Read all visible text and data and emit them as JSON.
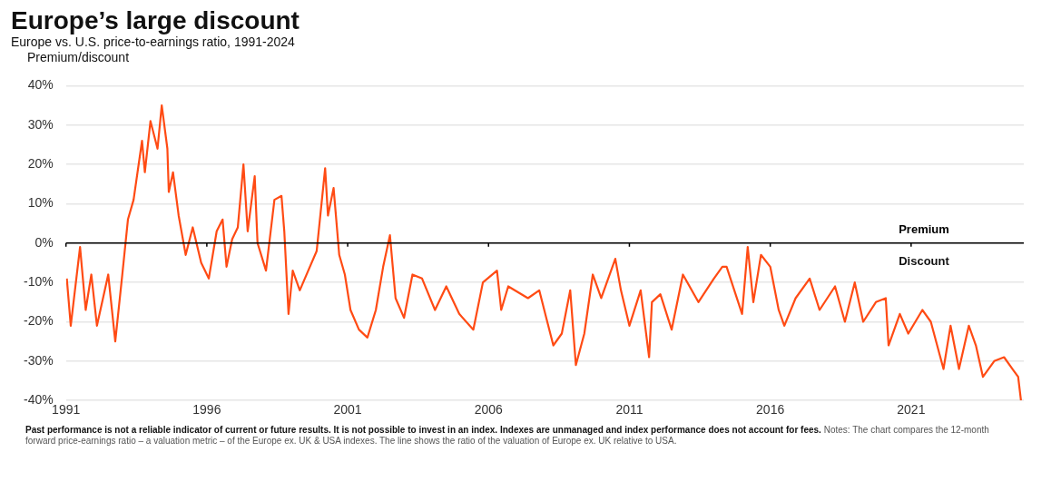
{
  "chart_data": {
    "type": "line",
    "title": "Europe’s large discount",
    "subtitle": "Europe vs. U.S. price-to-earnings ratio, 1991-2024",
    "ylabel": "Premium/discount",
    "x": [
      1991.03,
      1991.17,
      1991.5,
      1991.7,
      1991.9,
      1992.1,
      1992.5,
      1992.75,
      1993.0,
      1993.2,
      1993.4,
      1993.7,
      1993.8,
      1994.0,
      1994.25,
      1994.4,
      1994.6,
      1994.65,
      1994.8,
      1995.0,
      1995.25,
      1995.5,
      1995.8,
      1996.07,
      1996.35,
      1996.56,
      1996.7,
      1996.9,
      1997.1,
      1997.3,
      1997.45,
      1997.7,
      1997.8,
      1998.1,
      1998.4,
      1998.65,
      1998.75,
      1998.9,
      1999.05,
      1999.3,
      1999.6,
      1999.9,
      2000.2,
      2000.3,
      2000.5,
      2000.7,
      2000.9,
      2001.1,
      2001.4,
      2001.7,
      2002.0,
      2002.26,
      2002.5,
      2002.7,
      2003.0,
      2003.3,
      2003.64,
      2004.1,
      2004.5,
      2004.96,
      2005.46,
      2005.8,
      2006.3,
      2006.45,
      2006.7,
      2007.4,
      2007.8,
      2008.05,
      2008.3,
      2008.6,
      2008.9,
      2009.1,
      2009.4,
      2009.7,
      2010.0,
      2010.5,
      2010.7,
      2011.0,
      2011.4,
      2011.7,
      2011.8,
      2012.1,
      2012.5,
      2012.9,
      2013.45,
      2014.0,
      2014.3,
      2014.45,
      2015.0,
      2015.2,
      2015.4,
      2015.67,
      2016.0,
      2016.3,
      2016.5,
      2016.9,
      2017.4,
      2017.75,
      2018.3,
      2018.65,
      2019.0,
      2019.3,
      2019.75,
      2020.1,
      2020.2,
      2020.6,
      2020.9,
      2021.4,
      2021.7,
      2022.15,
      2022.4,
      2022.7,
      2023.05,
      2023.3,
      2023.55,
      2023.95,
      2024.3,
      2024.6,
      2024.8,
      2024.9
    ],
    "series": [
      {
        "color": "#ff4b14",
        "values": [
          -9,
          -21,
          -1,
          -17,
          -8,
          -21,
          -8,
          -25,
          -8,
          6,
          11,
          26,
          18,
          31,
          24,
          35,
          24,
          13,
          18,
          7,
          -3,
          4,
          -5,
          -9,
          3,
          6,
          -6,
          1,
          4,
          20,
          3,
          17,
          0,
          -7,
          11,
          12,
          3,
          -18,
          -7,
          -12,
          -7,
          -2,
          19,
          7,
          14,
          -3,
          -8,
          -17,
          -22,
          -24,
          -17,
          -6,
          2,
          -14,
          -19,
          -8,
          -9,
          -17,
          -11,
          -18,
          -22,
          -10,
          -7,
          -17,
          -11,
          -14,
          -12,
          -19,
          -26,
          -23,
          -12,
          -31,
          -23,
          -8,
          -14,
          -4,
          -12,
          -21,
          -12,
          -29,
          -15,
          -13,
          -22,
          -8,
          -15,
          -9,
          -6,
          -6,
          -18,
          -1,
          -15,
          -3,
          -6,
          -17,
          -21,
          -14,
          -9,
          -17,
          -11,
          -20,
          -10,
          -20,
          -15,
          -14,
          -26,
          -18,
          -23,
          -17,
          -20,
          -32,
          -21,
          -32,
          -21,
          -26,
          -34,
          -30,
          -29,
          -32,
          -34,
          -40
        ]
      }
    ],
    "xlim": [
      1991,
      2025
    ],
    "xticks": [
      1991,
      1996,
      2001,
      2006,
      2011,
      2016,
      2021
    ],
    "ylim": [
      -40,
      40
    ],
    "yticks": [
      {
        "value": -40,
        "label": "-40%"
      },
      {
        "value": -30,
        "label": "-30%"
      },
      {
        "value": -20,
        "label": "-20%"
      },
      {
        "value": -10,
        "label": "-10%"
      },
      {
        "value": 0,
        "label": "0%"
      },
      {
        "value": 10,
        "label": "10%"
      },
      {
        "value": 20,
        "label": "20%"
      },
      {
        "value": 30,
        "label": "30%"
      },
      {
        "value": 40,
        "label": "40%"
      }
    ],
    "grid": "y",
    "legend": false,
    "marker": "none",
    "line_style": "solid",
    "ref_lines": [
      {
        "axis": "y",
        "value": 0,
        "color": "#000000",
        "label": "Premium"
      }
    ],
    "annotations": [
      "Discount",
      "Past performance is not a reliable indicator of current or future results. It is not possible to invest in an index. Indexes are unmanaged and index performance does not account for fees.",
      "Notes: The chart compares the 12-month forward price-earnings ratio – a valuation metric – of the Europe ex. UK & USA indexes. The line shows the ratio of the valuation of Europe ex. UK relative to USA."
    ]
  }
}
